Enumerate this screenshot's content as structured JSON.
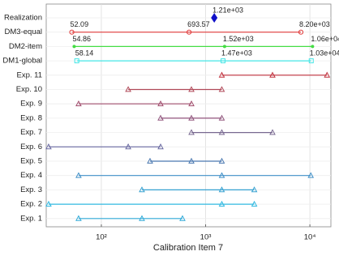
{
  "chart_data": {
    "type": "range",
    "xlabel": "Calibration Item 7",
    "log_x": true,
    "grid": true,
    "xlim": [
      29.6,
      15900
    ],
    "xticks": [
      {
        "value": 100,
        "label": "10²"
      },
      {
        "value": 1000,
        "label": "10³"
      },
      {
        "value": 10000,
        "label": "10⁴"
      }
    ],
    "rows": [
      {
        "label": "Realization",
        "color": "#1010c8",
        "marker": "diamond",
        "values": [
          1210
        ],
        "value_labels": [
          "1.21e+03"
        ]
      },
      {
        "label": "DM3-equal",
        "color": "#e03a3a",
        "marker": "circle",
        "values": [
          52.09,
          693.57,
          8200
        ],
        "value_labels": [
          "52.09",
          "693.57",
          "8.20e+03"
        ]
      },
      {
        "label": "DM2-item",
        "color": "#44dd44",
        "marker": "dot",
        "values": [
          54.86,
          1520,
          10600
        ],
        "value_labels": [
          "54.86",
          "1.52e+03",
          "1.06e+04"
        ]
      },
      {
        "label": "DM1-global",
        "color": "#44e6e6",
        "marker": "square",
        "values": [
          58.14,
          1470,
          10300
        ],
        "value_labels": [
          "58.14",
          "1.47e+03",
          "1.03e+04"
        ]
      },
      {
        "label": "Exp. 11",
        "color": "#c0303c",
        "marker": "triangle",
        "values": [
          1430,
          4380,
          14600
        ]
      },
      {
        "label": "Exp. 10",
        "color": "#b04858",
        "marker": "triangle",
        "values": [
          181,
          731,
          1430
        ]
      },
      {
        "label": "Exp. 9",
        "color": "#a04c6c",
        "marker": "triangle",
        "values": [
          60.5,
          370,
          731
        ]
      },
      {
        "label": "Exp. 8",
        "color": "#90547c",
        "marker": "triangle",
        "values": [
          370,
          731,
          1430
        ]
      },
      {
        "label": "Exp. 7",
        "color": "#786890",
        "marker": "triangle",
        "values": [
          731,
          1430,
          4380
        ]
      },
      {
        "label": "Exp. 6",
        "color": "#6868a0",
        "marker": "triangle",
        "values": [
          31.2,
          181,
          370
        ]
      },
      {
        "label": "Exp. 5",
        "color": "#4a78b0",
        "marker": "triangle",
        "values": [
          293,
          731,
          1430
        ]
      },
      {
        "label": "Exp. 4",
        "color": "#4090c8",
        "marker": "triangle",
        "values": [
          60.5,
          1430,
          10200
        ]
      },
      {
        "label": "Exp. 3",
        "color": "#34a0d0",
        "marker": "triangle",
        "values": [
          245,
          1430,
          2930
        ]
      },
      {
        "label": "Exp. 2",
        "color": "#30b8e0",
        "marker": "triangle",
        "values": [
          31.2,
          1430,
          2930
        ]
      },
      {
        "label": "Exp. 1",
        "color": "#30aad8",
        "marker": "triangle",
        "values": [
          60.5,
          245,
          600
        ]
      }
    ]
  }
}
